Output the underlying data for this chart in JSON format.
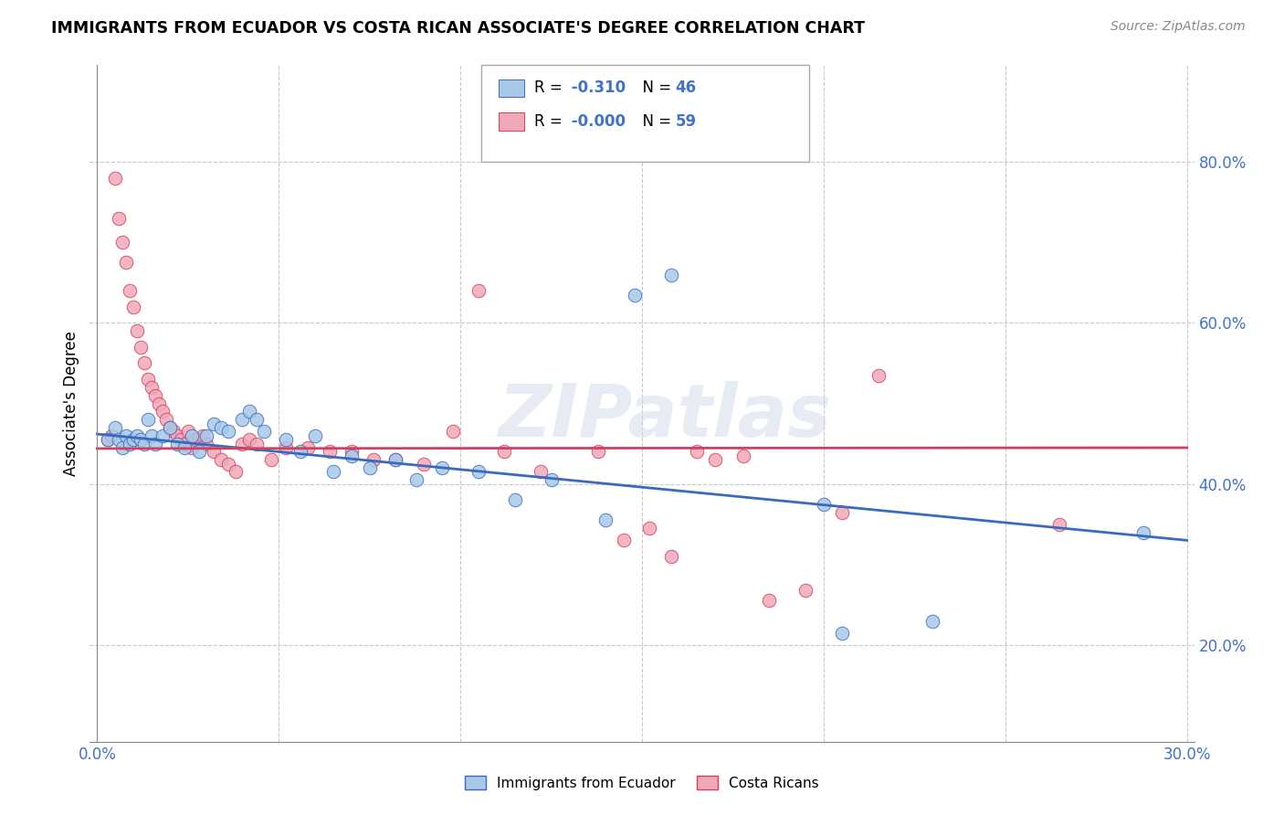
{
  "title": "IMMIGRANTS FROM ECUADOR VS COSTA RICAN ASSOCIATE'S DEGREE CORRELATION CHART",
  "source": "Source: ZipAtlas.com",
  "ylabel": "Associate's Degree",
  "legend_label1": "Immigrants from Ecuador",
  "legend_label2": "Costa Ricans",
  "r1": "-0.310",
  "n1": "46",
  "r2": "-0.000",
  "n2": "59",
  "xlim": [
    -0.002,
    0.302
  ],
  "ylim": [
    0.08,
    0.92
  ],
  "x_ticks": [
    0.0,
    0.05,
    0.1,
    0.15,
    0.2,
    0.25,
    0.3
  ],
  "y_ticks_right": [
    0.2,
    0.4,
    0.6,
    0.8
  ],
  "color_blue": "#a8c8e8",
  "color_pink": "#f0a8b8",
  "line_blue": "#3a6abf",
  "line_pink": "#d04060",
  "background_color": "#ffffff",
  "grid_color": "#c8c8c8",
  "watermark": "ZIPatlas",
  "blue_scatter": [
    [
      0.003,
      0.455
    ],
    [
      0.005,
      0.47
    ],
    [
      0.006,
      0.455
    ],
    [
      0.007,
      0.445
    ],
    [
      0.008,
      0.46
    ],
    [
      0.009,
      0.45
    ],
    [
      0.01,
      0.455
    ],
    [
      0.011,
      0.46
    ],
    [
      0.012,
      0.455
    ],
    [
      0.013,
      0.45
    ],
    [
      0.014,
      0.48
    ],
    [
      0.015,
      0.46
    ],
    [
      0.016,
      0.45
    ],
    [
      0.018,
      0.46
    ],
    [
      0.02,
      0.47
    ],
    [
      0.022,
      0.45
    ],
    [
      0.024,
      0.445
    ],
    [
      0.026,
      0.46
    ],
    [
      0.028,
      0.44
    ],
    [
      0.03,
      0.46
    ],
    [
      0.032,
      0.475
    ],
    [
      0.034,
      0.47
    ],
    [
      0.036,
      0.465
    ],
    [
      0.04,
      0.48
    ],
    [
      0.042,
      0.49
    ],
    [
      0.044,
      0.48
    ],
    [
      0.046,
      0.465
    ],
    [
      0.052,
      0.455
    ],
    [
      0.056,
      0.44
    ],
    [
      0.06,
      0.46
    ],
    [
      0.065,
      0.415
    ],
    [
      0.07,
      0.435
    ],
    [
      0.075,
      0.42
    ],
    [
      0.082,
      0.43
    ],
    [
      0.088,
      0.405
    ],
    [
      0.095,
      0.42
    ],
    [
      0.105,
      0.415
    ],
    [
      0.115,
      0.38
    ],
    [
      0.125,
      0.405
    ],
    [
      0.14,
      0.355
    ],
    [
      0.148,
      0.635
    ],
    [
      0.158,
      0.66
    ],
    [
      0.2,
      0.375
    ],
    [
      0.205,
      0.215
    ],
    [
      0.23,
      0.23
    ],
    [
      0.288,
      0.34
    ]
  ],
  "pink_scatter": [
    [
      0.003,
      0.455
    ],
    [
      0.004,
      0.46
    ],
    [
      0.005,
      0.78
    ],
    [
      0.006,
      0.73
    ],
    [
      0.007,
      0.7
    ],
    [
      0.008,
      0.675
    ],
    [
      0.009,
      0.64
    ],
    [
      0.01,
      0.62
    ],
    [
      0.011,
      0.59
    ],
    [
      0.012,
      0.57
    ],
    [
      0.013,
      0.55
    ],
    [
      0.014,
      0.53
    ],
    [
      0.015,
      0.52
    ],
    [
      0.016,
      0.51
    ],
    [
      0.017,
      0.5
    ],
    [
      0.018,
      0.49
    ],
    [
      0.019,
      0.48
    ],
    [
      0.02,
      0.47
    ],
    [
      0.021,
      0.465
    ],
    [
      0.022,
      0.46
    ],
    [
      0.023,
      0.455
    ],
    [
      0.024,
      0.45
    ],
    [
      0.025,
      0.465
    ],
    [
      0.026,
      0.445
    ],
    [
      0.027,
      0.455
    ],
    [
      0.028,
      0.455
    ],
    [
      0.029,
      0.46
    ],
    [
      0.03,
      0.45
    ],
    [
      0.032,
      0.44
    ],
    [
      0.034,
      0.43
    ],
    [
      0.036,
      0.425
    ],
    [
      0.038,
      0.415
    ],
    [
      0.04,
      0.45
    ],
    [
      0.042,
      0.455
    ],
    [
      0.044,
      0.45
    ],
    [
      0.048,
      0.43
    ],
    [
      0.052,
      0.445
    ],
    [
      0.058,
      0.445
    ],
    [
      0.064,
      0.44
    ],
    [
      0.07,
      0.44
    ],
    [
      0.076,
      0.43
    ],
    [
      0.082,
      0.43
    ],
    [
      0.09,
      0.425
    ],
    [
      0.098,
      0.465
    ],
    [
      0.105,
      0.64
    ],
    [
      0.112,
      0.44
    ],
    [
      0.122,
      0.415
    ],
    [
      0.138,
      0.44
    ],
    [
      0.145,
      0.33
    ],
    [
      0.152,
      0.345
    ],
    [
      0.158,
      0.31
    ],
    [
      0.165,
      0.44
    ],
    [
      0.17,
      0.43
    ],
    [
      0.178,
      0.435
    ],
    [
      0.185,
      0.255
    ],
    [
      0.195,
      0.268
    ],
    [
      0.205,
      0.365
    ],
    [
      0.215,
      0.535
    ],
    [
      0.265,
      0.35
    ]
  ],
  "blue_line": [
    [
      0.0,
      0.462
    ],
    [
      0.3,
      0.33
    ]
  ],
  "pink_line": [
    [
      0.0,
      0.444
    ],
    [
      0.3,
      0.445
    ]
  ]
}
